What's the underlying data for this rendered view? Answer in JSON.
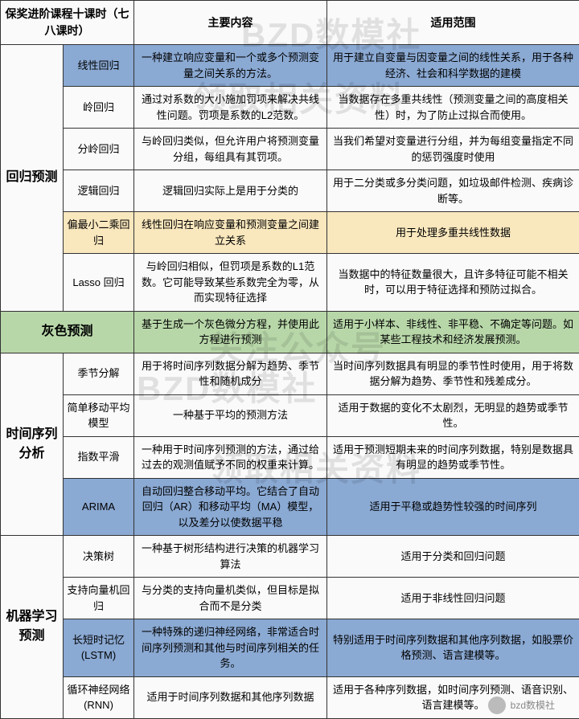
{
  "header": {
    "col1": "保奖进阶课程十课时（七八课时）",
    "col2": "主要内容",
    "col3": "适用范围"
  },
  "watermarks": {
    "w1": "BZD数模社",
    "w2": "领取相关资料",
    "w3": "关注公众号",
    "w4": "BZD数模社",
    "w5": "领取相关资料"
  },
  "footer": "bzd数模社",
  "cats": {
    "reg": "回归预测",
    "grey": "灰色预测",
    "ts": "时间序列分析",
    "ml": "机器学习预测"
  },
  "rows": [
    {
      "cat": "reg",
      "name": "线性回归",
      "content": "一种建立响应变量和一个或多个预测变量之间关系的方法。",
      "scope": "用于建立自变量与因变量之间的线性关系，用于各种经济、社会和科学数据的建模",
      "cls": "hl-blue"
    },
    {
      "cat": "reg",
      "name": "岭回归",
      "content": "通过对系数的大小施加罚项来解决共线性问题。罚项是系数的L2范数。",
      "scope": "当数据存在多重共线性（预测变量之间的高度相关性）时，为了防止过拟合而使用。",
      "cls": "plain"
    },
    {
      "cat": "reg",
      "name": "分岭回归",
      "content": "与岭回归类似，但允许用户将预测变量分组，每组具有其罚项。",
      "scope": "当我们希望对变量进行分组，并为每组变量指定不同的惩罚强度时使用",
      "cls": "plain"
    },
    {
      "cat": "reg",
      "name": "逻辑回归",
      "content": "逻辑回归实际上是用于分类的",
      "scope": "用于二分类或多分类问题，如垃圾邮件检测、疾病诊断等。",
      "cls": "plain"
    },
    {
      "cat": "reg",
      "name": "偏最小二乘回归",
      "content": "线性回归在响应变量和预测变量之间建立关系",
      "scope": "用于处理多重共线性数据",
      "cls": "hl-yellow"
    },
    {
      "cat": "reg",
      "name": "Lasso 回归",
      "content": "与岭回归相似，但罚项是系数的L1范数。它可能导致某些系数完全为零，从而实现特征选择",
      "scope": "当数据中的特征数量很大，且许多特征可能不相关时，可以用于特征选择和预防过拟合。",
      "cls": "plain"
    },
    {
      "cat": "grey",
      "name": "",
      "content": "基于生成一个灰色微分方程，并使用此方程进行预测",
      "scope": "适用于小样本、非线性、非平稳、不确定等问题。如某些工程技术和经济发展预测。",
      "cls": "hl-green"
    },
    {
      "cat": "ts",
      "name": "季节分解",
      "content": "用于将时间序列数据分解为趋势、季节性和随机成分",
      "scope": "当时间序列数据具有明显的季节性时使用，用于将数据分解为趋势、季节性和残差成分。",
      "cls": "plain"
    },
    {
      "cat": "ts",
      "name": "简单移动平均模型",
      "content": "一种基于平均的预测方法",
      "scope": "适用于数据的变化不太剧烈，无明显的趋势或季节性。",
      "cls": "plain"
    },
    {
      "cat": "ts",
      "name": "指数平滑",
      "content": "一种用于时间序列预测的方法，通过给过去的观测值赋予不同的权重来计算。",
      "scope": "适用于预测短期未来的时间序列数据，特别是数据具有明显的趋势或季节性。",
      "cls": "plain"
    },
    {
      "cat": "ts",
      "name": "ARIMA",
      "content": "自动回归整合移动平均。它结合了自动回归（AR）和移动平均（MA）模型，以及差分以使数据平稳",
      "scope": "适用于平稳或趋势性较强的时间序列",
      "cls": "hl-blue"
    },
    {
      "cat": "ml",
      "name": "决策树",
      "content": "一种基于树形结构进行决策的机器学习算法",
      "scope": "适用于分类和回归问题",
      "cls": "plain"
    },
    {
      "cat": "ml",
      "name": "支持向量机回归",
      "content": "与分类的支持向量机类似，但目标是拟合而不是分类",
      "scope": "适用于非线性回归问题",
      "cls": "plain"
    },
    {
      "cat": "ml",
      "name": "长短时记忆 (LSTM)",
      "content": "一种特殊的递归神经网络，非常适合时间序列预测和其他与时间序列相关的任务。",
      "scope": "特别适用于时间序列数据和其他序列数据，如股票价格预测、语言建模等。",
      "cls": "hl-blue"
    },
    {
      "cat": "ml",
      "name": "循环神经网络 (RNN)",
      "content": "适用于时间序列数据和其他序列数据",
      "scope": "适用于各种序列数据，如时间序列预测、语音识别、语言建模等。",
      "cls": "plain"
    }
  ]
}
